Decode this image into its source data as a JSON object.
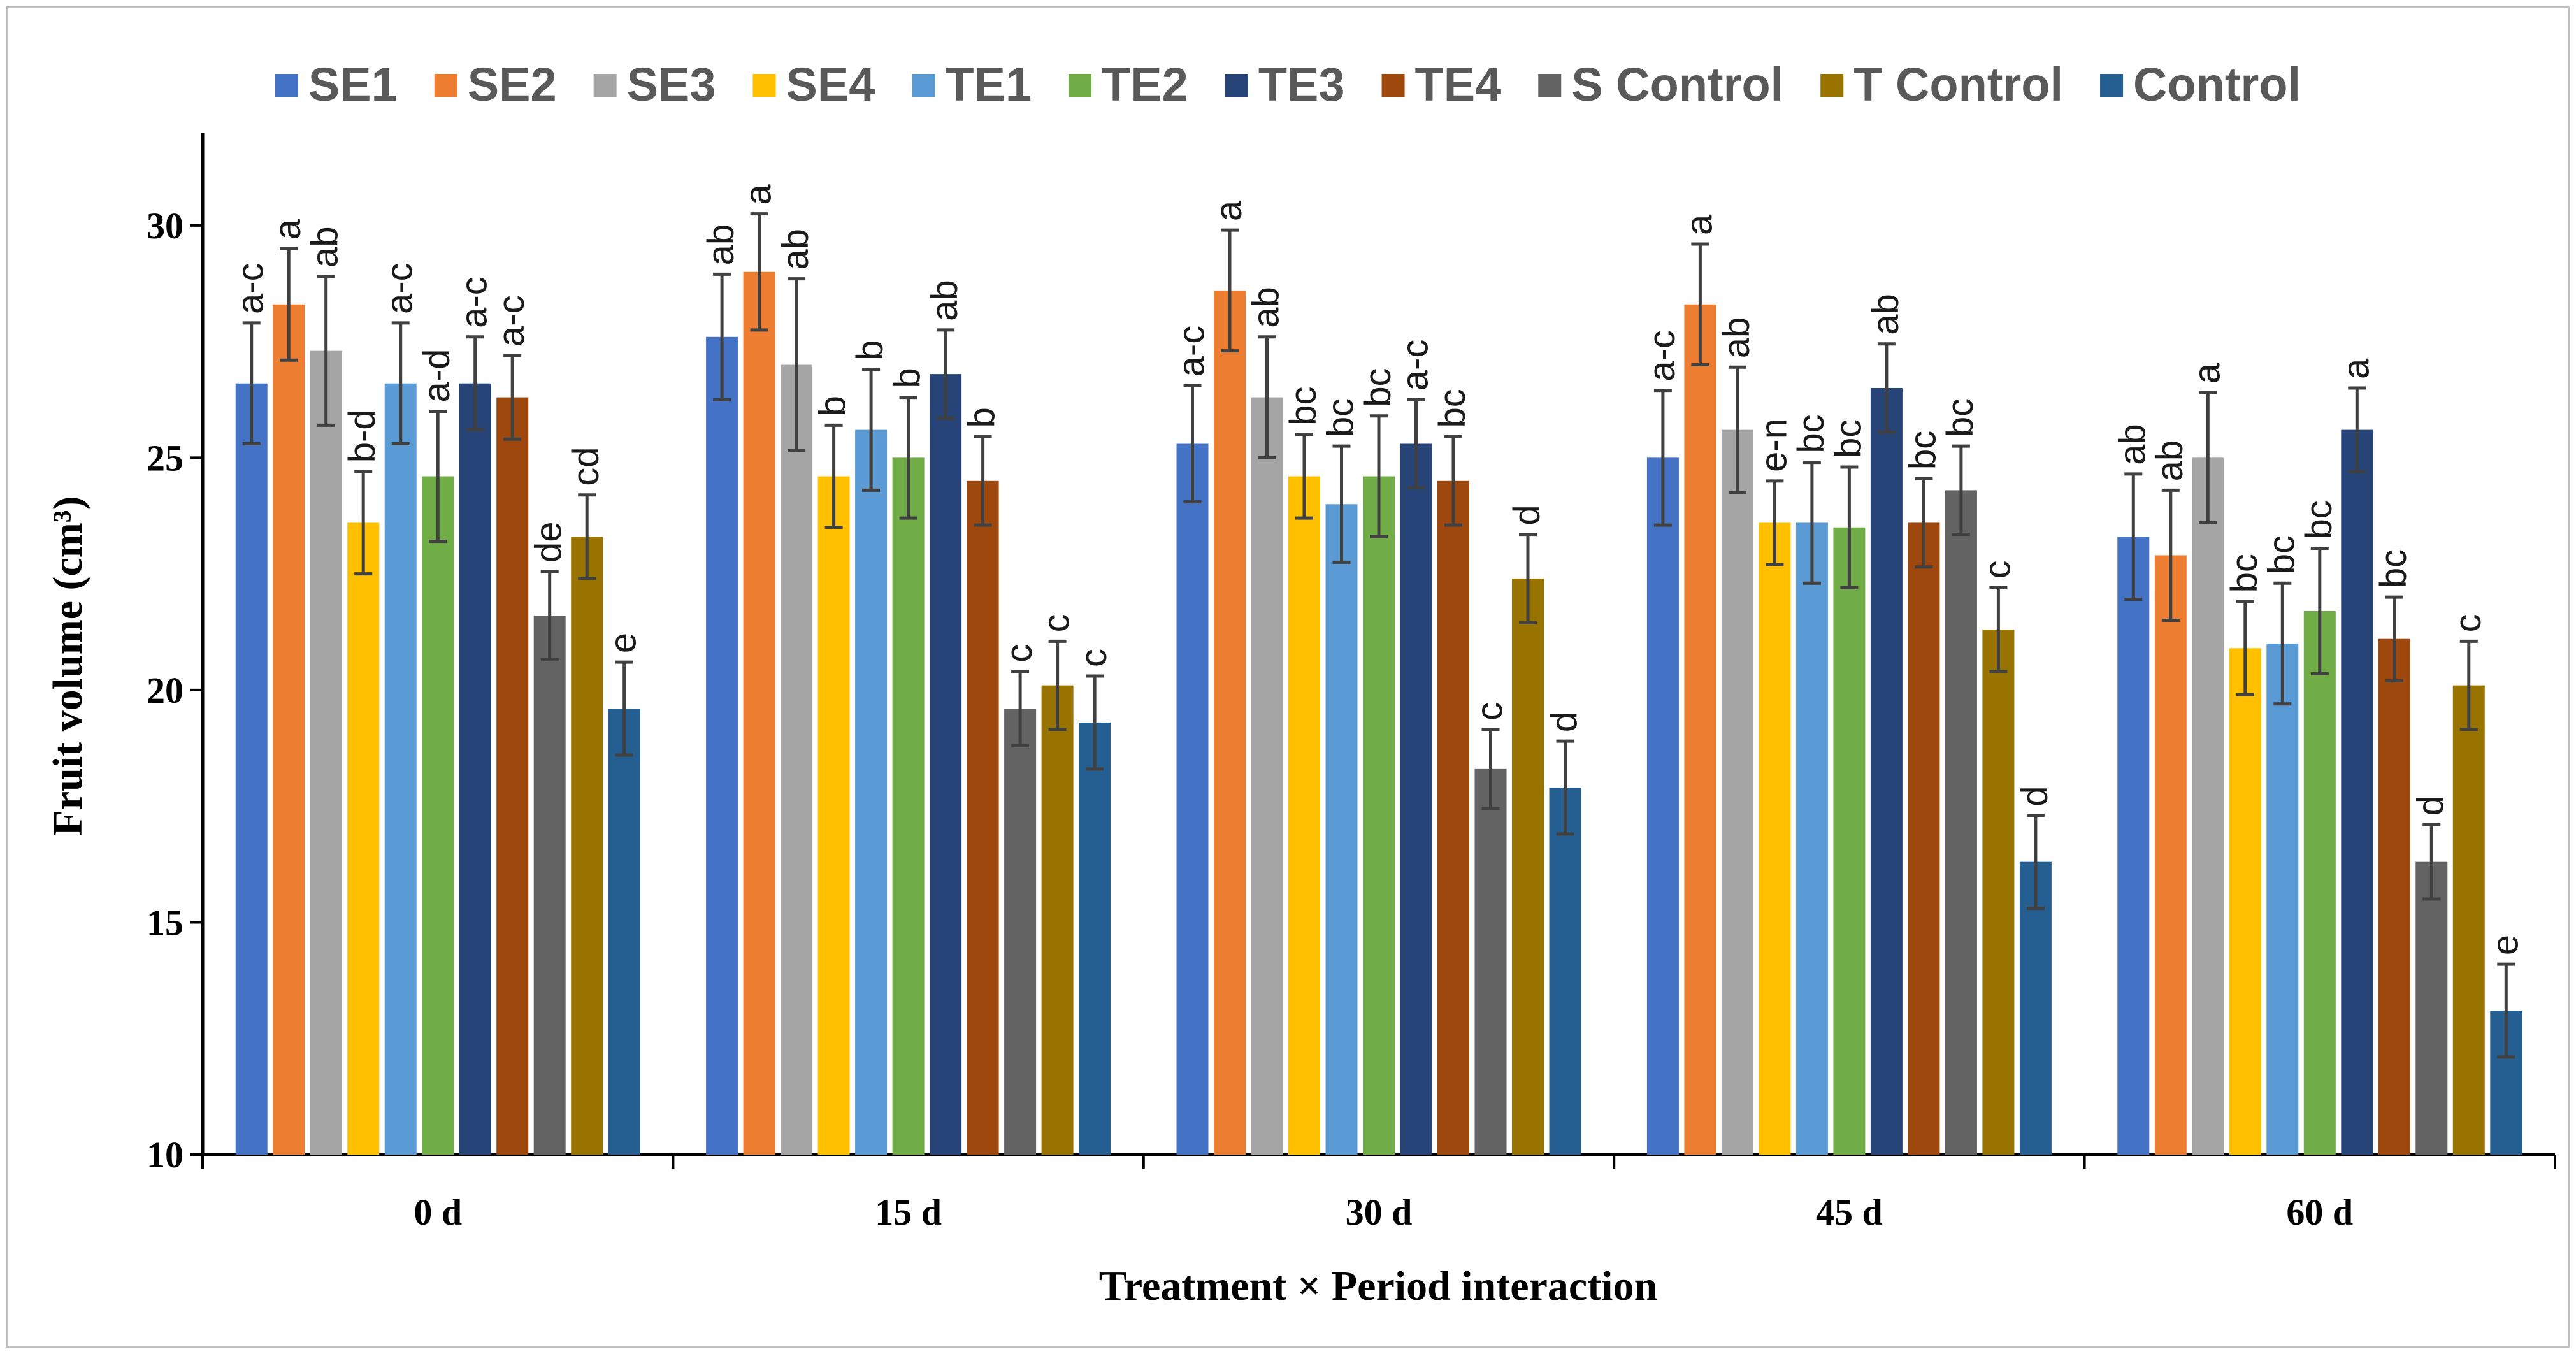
{
  "chart_data": {
    "type": "bar",
    "title": "",
    "xlabel": "Treatment × Period interaction",
    "ylabel": "Fruit volume (cm³)",
    "ylim": [
      10,
      32
    ],
    "yticks": [
      "10",
      "15",
      "20",
      "25",
      "30"
    ],
    "ytick_values": [
      10,
      15,
      20,
      25,
      30
    ],
    "categories": [
      "0 d",
      "15 d",
      "30 d",
      "45 d",
      "60 d"
    ],
    "legend_position": "top",
    "series": [
      {
        "name": "SE1",
        "color": "#4472C4",
        "values": [
          26.6,
          27.6,
          25.3,
          25.0,
          23.3
        ],
        "errors": [
          1.3,
          1.35,
          1.25,
          1.45,
          1.35
        ],
        "letters": [
          "a-c",
          "ab",
          "a-c",
          "a-c",
          "ab"
        ]
      },
      {
        "name": "SE2",
        "color": "#ED7D31",
        "values": [
          28.3,
          29.0,
          28.6,
          28.3,
          22.9
        ],
        "errors": [
          1.2,
          1.25,
          1.3,
          1.3,
          1.4
        ],
        "letters": [
          "a",
          "a",
          "a",
          "a",
          "ab"
        ]
      },
      {
        "name": "SE3",
        "color": "#A5A5A5",
        "values": [
          27.3,
          27.0,
          26.3,
          25.6,
          25.0
        ],
        "errors": [
          1.6,
          1.85,
          1.3,
          1.35,
          1.4
        ],
        "letters": [
          "ab",
          "ab",
          "ab",
          "ab",
          "a"
        ]
      },
      {
        "name": "SE4",
        "color": "#FFC000",
        "values": [
          23.6,
          24.6,
          24.6,
          23.6,
          20.9
        ],
        "errors": [
          1.1,
          1.1,
          0.9,
          0.9,
          1.0
        ],
        "letters": [
          "b-d",
          "b",
          "bc",
          "e-n",
          "bc"
        ]
      },
      {
        "name": "TE1",
        "color": "#5B9BD5",
        "values": [
          26.6,
          25.6,
          24.0,
          23.6,
          21.0
        ],
        "errors": [
          1.3,
          1.3,
          1.25,
          1.3,
          1.3
        ],
        "letters": [
          "a-c",
          "b",
          "bc",
          "bc",
          "bc"
        ]
      },
      {
        "name": "TE2",
        "color": "#70AD47",
        "values": [
          24.6,
          25.0,
          24.6,
          23.5,
          21.7
        ],
        "errors": [
          1.4,
          1.3,
          1.3,
          1.3,
          1.35
        ],
        "letters": [
          "a-d",
          "b",
          "bc",
          "bc",
          "bc"
        ]
      },
      {
        "name": "TE3",
        "color": "#264478",
        "values": [
          26.6,
          26.8,
          25.3,
          26.5,
          25.6
        ],
        "errors": [
          1.0,
          0.95,
          0.95,
          0.95,
          0.9
        ],
        "letters": [
          "a-c",
          "ab",
          "a-c",
          "ab",
          "a"
        ]
      },
      {
        "name": "TE4",
        "color": "#9E480E",
        "values": [
          26.3,
          24.5,
          24.5,
          23.6,
          21.1
        ],
        "errors": [
          0.9,
          0.95,
          0.95,
          0.95,
          0.9
        ],
        "letters": [
          "a-c",
          "b",
          "bc",
          "bc",
          "bc"
        ]
      },
      {
        "name": "S Control",
        "color": "#636363",
        "values": [
          21.6,
          19.6,
          18.3,
          24.3,
          16.3
        ],
        "errors": [
          0.95,
          0.8,
          0.85,
          0.95,
          0.8
        ],
        "letters": [
          "de",
          "c",
          "c",
          "bc",
          "d"
        ]
      },
      {
        "name": "T Control",
        "color": "#997300",
        "values": [
          23.3,
          20.1,
          22.4,
          21.3,
          20.1
        ],
        "errors": [
          0.9,
          0.95,
          0.95,
          0.9,
          0.95
        ],
        "letters": [
          "cd",
          "c",
          "d",
          "c",
          "c"
        ]
      },
      {
        "name": "Control",
        "color": "#255E91",
        "values": [
          19.6,
          19.3,
          17.9,
          16.3,
          13.1
        ],
        "errors": [
          1.0,
          1.0,
          1.0,
          1.0,
          1.0
        ],
        "letters": [
          "e",
          "c",
          "d",
          "d",
          "e"
        ]
      }
    ]
  }
}
